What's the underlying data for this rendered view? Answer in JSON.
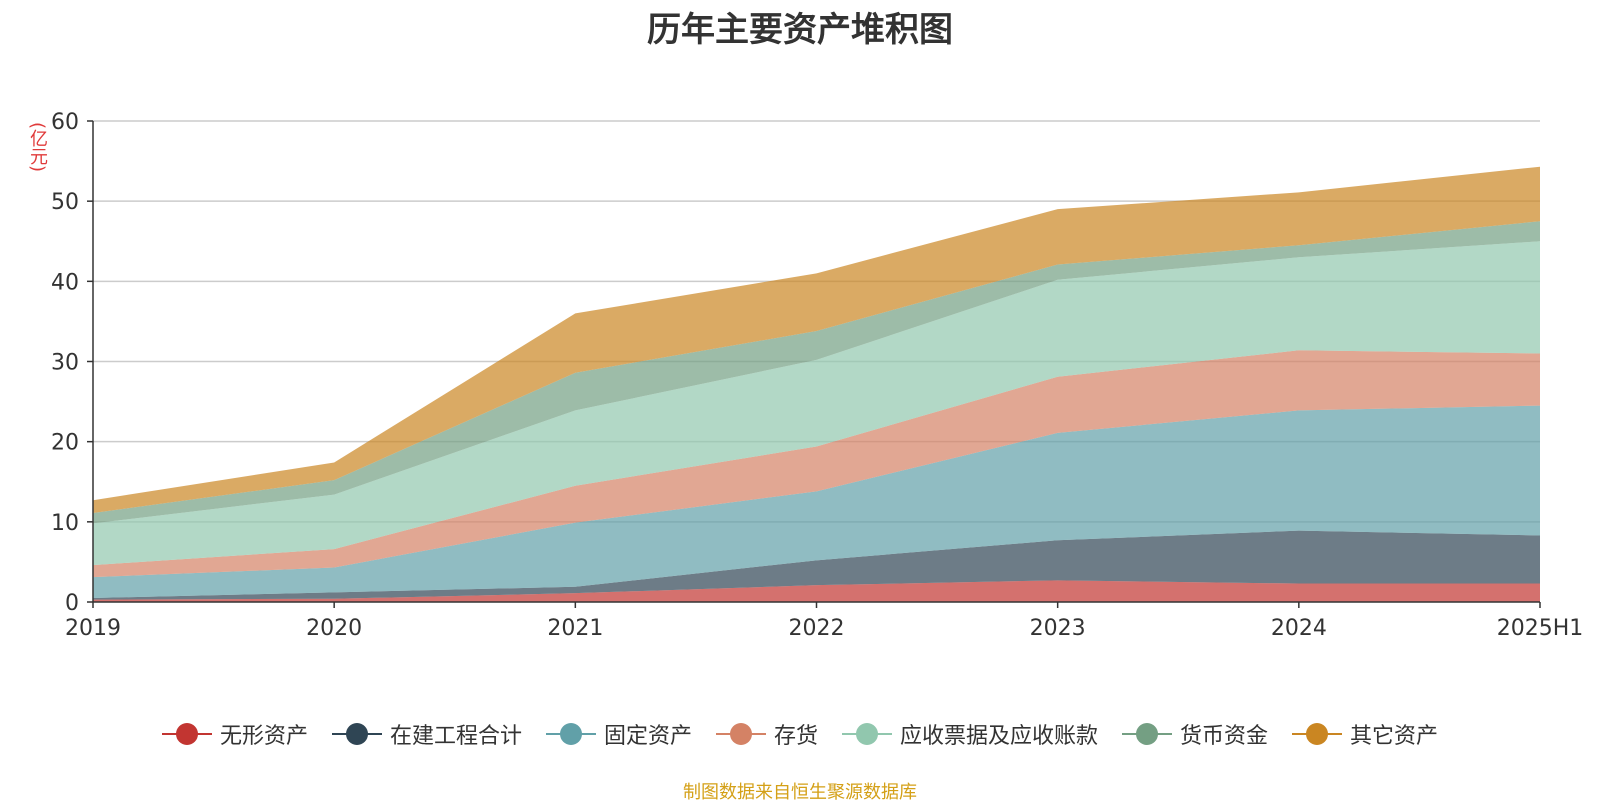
{
  "title": "历年主要资产堆积图",
  "unit_label": "(亿元)",
  "source": "制图数据来自恒生聚源数据库",
  "chart_data": {
    "type": "area",
    "stacked": true,
    "title": "历年主要资产堆积图",
    "ylabel": "(亿元)",
    "xlabel": "",
    "categories": [
      "2019",
      "2020",
      "2021",
      "2022",
      "2023",
      "2024",
      "2025H1"
    ],
    "ylim": [
      0,
      60
    ],
    "yticks": [
      0,
      10,
      20,
      30,
      40,
      50,
      60
    ],
    "grid": true,
    "legend_position": "bottom",
    "series": [
      {
        "name": "无形资产",
        "color": "#c23531",
        "values": [
          0.3,
          0.4,
          1.1,
          2.1,
          2.7,
          2.3,
          2.3
        ]
      },
      {
        "name": "在建工程合计",
        "color": "#2f4554",
        "values": [
          0.2,
          0.8,
          0.8,
          3.1,
          5.0,
          6.6,
          6.0
        ]
      },
      {
        "name": "固定资产",
        "color": "#61a0a8",
        "values": [
          2.6,
          3.1,
          8.0,
          8.6,
          13.4,
          15.0,
          16.2
        ]
      },
      {
        "name": "存货",
        "color": "#d48265",
        "values": [
          1.5,
          2.3,
          4.6,
          5.6,
          7.0,
          7.5,
          6.5
        ]
      },
      {
        "name": "应收票据及应收账款",
        "color": "#91c7ae",
        "values": [
          5.2,
          6.8,
          9.4,
          10.8,
          12.1,
          11.6,
          14.0
        ]
      },
      {
        "name": "货币资金",
        "color": "#749f83",
        "values": [
          1.3,
          1.8,
          4.7,
          3.6,
          1.9,
          1.5,
          2.5
        ]
      },
      {
        "name": "其它资产",
        "color": "#ca8622",
        "values": [
          1.6,
          2.2,
          7.4,
          7.2,
          6.9,
          6.6,
          6.8
        ]
      }
    ]
  }
}
